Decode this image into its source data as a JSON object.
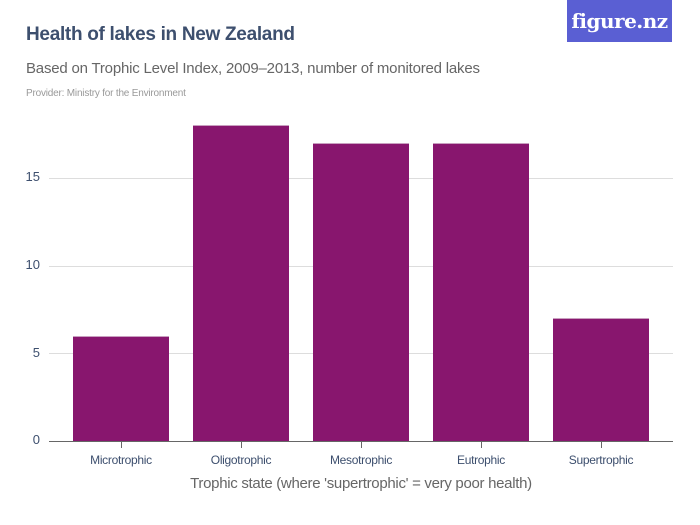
{
  "header": {
    "title": "Health of lakes in New Zealand",
    "subtitle": "Based on Trophic Level Index, 2009–2013, number of monitored lakes",
    "provider": "Provider: Ministry for the Environment",
    "logo": "figure.nz"
  },
  "colors": {
    "bar": "#88166e",
    "title": "#3d4f6e",
    "logo_bg": "#5a5fd3"
  },
  "chart_data": {
    "type": "bar",
    "title": "Health of lakes in New Zealand",
    "subtitle": "Based on Trophic Level Index, 2009–2013, number of monitored lakes",
    "xlabel": "Trophic state (where 'supertrophic' = very poor health)",
    "ylabel": "",
    "categories": [
      "Microtrophic",
      "Oligotrophic",
      "Mesotrophic",
      "Eutrophic",
      "Supertrophic"
    ],
    "values": [
      6,
      18,
      17,
      17,
      7
    ],
    "yticks": [
      "0",
      "5",
      "10",
      "15"
    ],
    "ylim": [
      0,
      18
    ],
    "grid": true,
    "legend": null
  }
}
